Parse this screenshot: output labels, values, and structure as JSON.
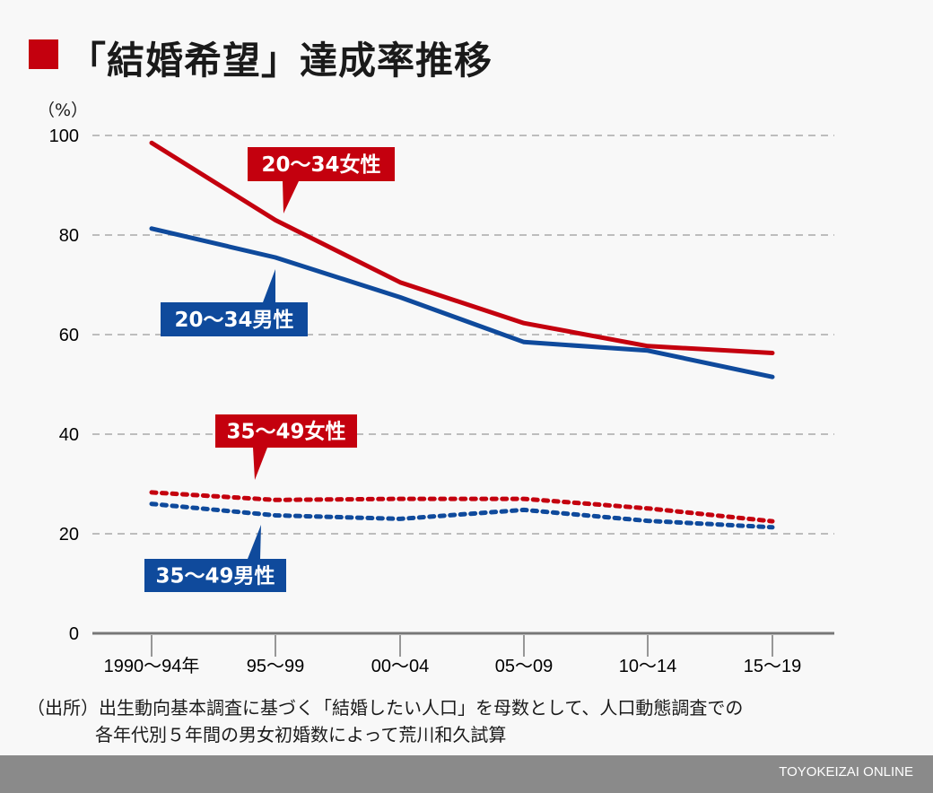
{
  "title": "「結婚希望」達成率推移",
  "colors": {
    "red": "#c4000e",
    "blue": "#0f4a9c",
    "grid": "#bdbdbd",
    "axis": "#777777"
  },
  "chart_data": {
    "type": "line",
    "title": "「結婚希望」達成率推移",
    "ylabel": "（%）",
    "xlabel": "",
    "ylim": [
      0,
      100
    ],
    "yticks": [
      0,
      20,
      40,
      60,
      80,
      100
    ],
    "grid": true,
    "categories": [
      "1990〜94年",
      "95〜99",
      "00〜04",
      "05〜09",
      "10〜14",
      "15〜19"
    ],
    "series": [
      {
        "name": "20〜34女性",
        "color": "#c4000e",
        "style": "solid",
        "values": [
          98.5,
          83.0,
          70.5,
          62.3,
          57.7,
          56.3
        ]
      },
      {
        "name": "20〜34男性",
        "color": "#0f4a9c",
        "style": "solid",
        "values": [
          81.3,
          75.5,
          67.5,
          58.5,
          56.8,
          51.5
        ]
      },
      {
        "name": "35〜49女性",
        "color": "#c4000e",
        "style": "dotted",
        "values": [
          28.3,
          26.8,
          27.0,
          27.0,
          25.1,
          22.5
        ]
      },
      {
        "name": "35〜49男性",
        "color": "#0f4a9c",
        "style": "dotted",
        "values": [
          26.0,
          23.7,
          23.0,
          24.8,
          22.6,
          21.3
        ]
      }
    ]
  },
  "source": {
    "line1": "（出所）出生動向基本調査に基づく「結婚したい人口」を母数として、人口動態調査での",
    "line2": "各年代別５年間の男女初婚数によって荒川和久試算"
  },
  "credit": "TOYOKEIZAI ONLINE"
}
